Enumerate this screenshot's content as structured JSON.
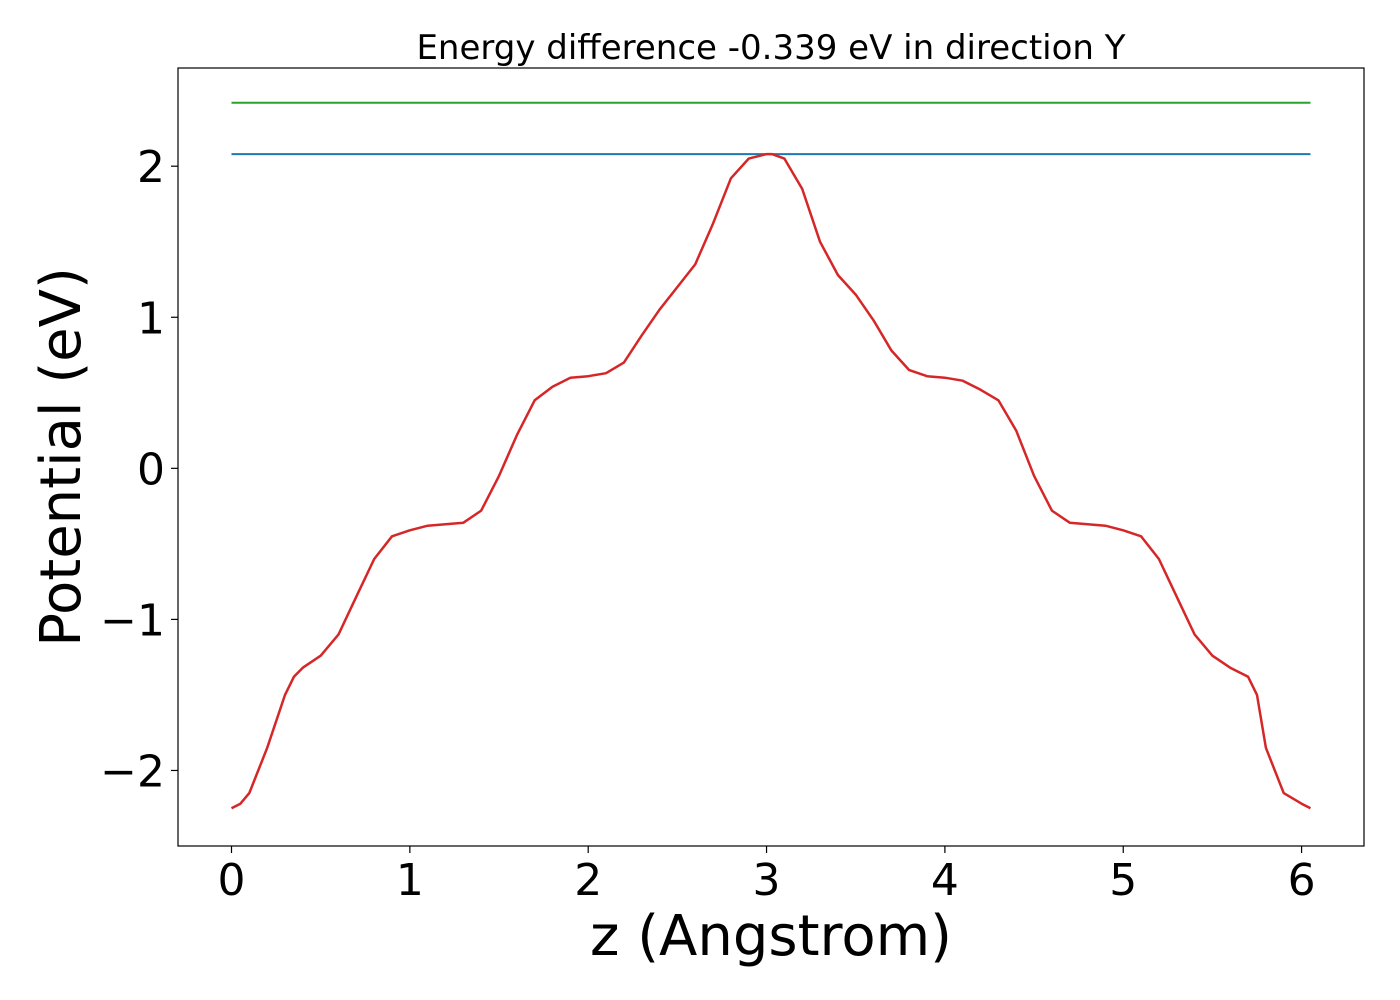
{
  "chart_data": {
    "type": "line",
    "title": "Energy difference -0.339 eV in direction Y",
    "xlabel": "z (Angstrom)",
    "ylabel": "Potential (eV)",
    "xlim": [
      -0.3,
      6.35
    ],
    "ylim": [
      -2.5,
      2.65
    ],
    "xticks": [
      0,
      1,
      2,
      3,
      4,
      5,
      6
    ],
    "xtick_labels": [
      "0",
      "1",
      "2",
      "3",
      "4",
      "5",
      "6"
    ],
    "yticks": [
      -2,
      -1,
      0,
      1,
      2
    ],
    "ytick_labels": [
      "−2",
      "−1",
      "0",
      "1",
      "2"
    ],
    "grid": false,
    "series": [
      {
        "color": "#2ca02c",
        "x": [
          0,
          6.05
        ],
        "y": [
          2.42,
          2.42
        ]
      },
      {
        "color": "#1f77b4",
        "x": [
          0,
          6.05
        ],
        "y": [
          2.08,
          2.08
        ]
      },
      {
        "color": "#d62728",
        "x": [
          0,
          0.05,
          0.1,
          0.2,
          0.3,
          0.35,
          0.4,
          0.5,
          0.6,
          0.7,
          0.8,
          0.9,
          1.0,
          1.1,
          1.2,
          1.3,
          1.4,
          1.5,
          1.6,
          1.7,
          1.8,
          1.9,
          2.0,
          2.1,
          2.2,
          2.3,
          2.4,
          2.5,
          2.6,
          2.7,
          2.8,
          2.9,
          3.0,
          3.03,
          3.1,
          3.2,
          3.3,
          3.4,
          3.5,
          3.6,
          3.7,
          3.8,
          3.9,
          4.0,
          4.1,
          4.2,
          4.3,
          4.4,
          4.5,
          4.6,
          4.7,
          4.8,
          4.9,
          5.0,
          5.1,
          5.2,
          5.3,
          5.4,
          5.5,
          5.6,
          5.7,
          5.75,
          5.8,
          5.9,
          6.0,
          6.05
        ],
        "y": [
          -2.25,
          -2.22,
          -2.15,
          -1.85,
          -1.5,
          -1.38,
          -1.32,
          -1.24,
          -1.1,
          -0.85,
          -0.6,
          -0.45,
          -0.41,
          -0.38,
          -0.37,
          -0.36,
          -0.28,
          -0.05,
          0.22,
          0.45,
          0.54,
          0.6,
          0.61,
          0.63,
          0.7,
          0.88,
          1.05,
          1.2,
          1.35,
          1.62,
          1.92,
          2.05,
          2.08,
          2.08,
          2.05,
          1.85,
          1.5,
          1.28,
          1.15,
          0.98,
          0.78,
          0.65,
          0.61,
          0.6,
          0.58,
          0.52,
          0.45,
          0.25,
          -0.05,
          -0.28,
          -0.36,
          -0.37,
          -0.38,
          -0.41,
          -0.45,
          -0.6,
          -0.85,
          -1.1,
          -1.24,
          -1.32,
          -1.38,
          -1.5,
          -1.85,
          -2.15,
          -2.22,
          -2.25
        ]
      }
    ]
  }
}
